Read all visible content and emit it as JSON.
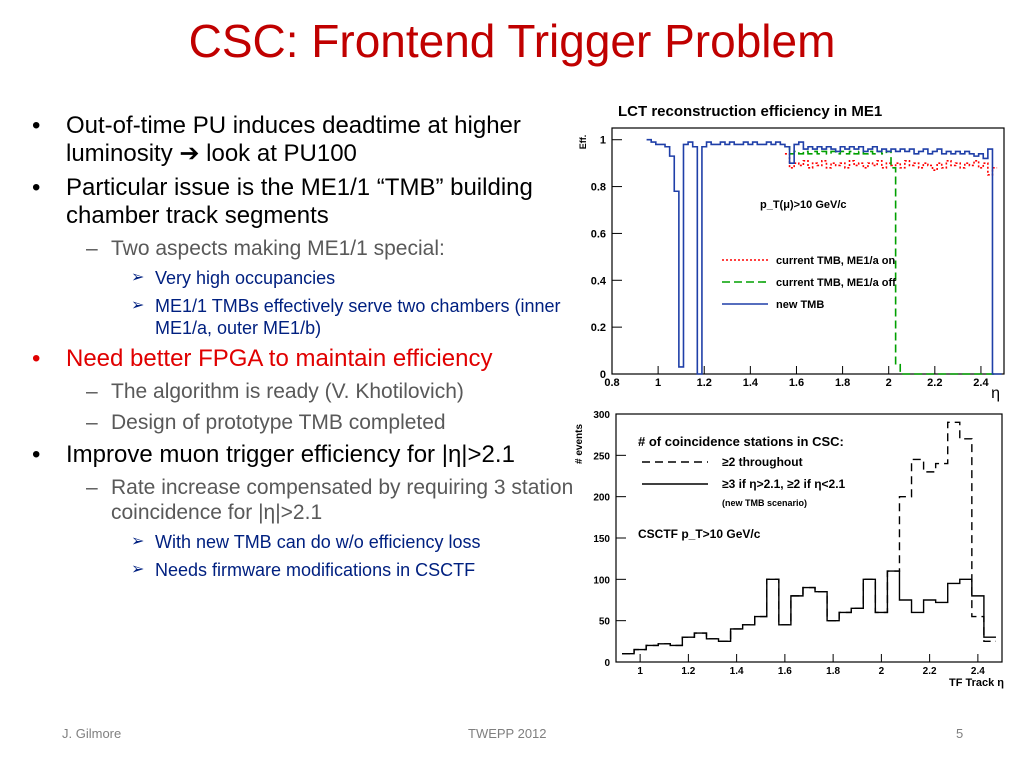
{
  "slide": {
    "title": "CSC: Frontend Trigger Problem",
    "bullets": [
      {
        "level": 1,
        "marker": "•",
        "text": "Out-of-time PU induces deadtime at higher luminosity  ➔ look at PU100"
      },
      {
        "level": 1,
        "marker": "•",
        "text": "Particular issue is the ME1/1 “TMB” building chamber track segments"
      },
      {
        "level": 2,
        "marker": "–",
        "text": "Two aspects making ME1/1 special:"
      },
      {
        "level": 3,
        "marker": "➢",
        "text": "Very high occupancies"
      },
      {
        "level": 3,
        "marker": "➢",
        "text": "ME1/1 TMBs effectively serve two chambers (inner ME1/a, outer ME1/b)"
      },
      {
        "level": 1,
        "marker": "•",
        "text": "Need better FPGA to maintain efficiency",
        "color": "#e00000"
      },
      {
        "level": 2,
        "marker": "–",
        "text": "The algorithm is ready (V. Khotilovich)"
      },
      {
        "level": 2,
        "marker": "–",
        "text": "Design of prototype TMB completed"
      },
      {
        "level": 1,
        "marker": "•",
        "text": "Improve muon trigger efficiency for |η|>2.1"
      },
      {
        "level": 2,
        "marker": "–",
        "text": "Rate increase compensated by requiring 3 station coincidence for |η|>2.1"
      },
      {
        "level": 3,
        "marker": "➢",
        "text": "With new TMB can do w/o efficiency loss"
      },
      {
        "level": 3,
        "marker": "➢",
        "text": "Needs firmware modifications in CSCTF"
      }
    ],
    "footer": {
      "left": "J. Gilmore",
      "center": "TWEPP 2012",
      "right": "5"
    },
    "colors": {
      "title": "#c00000",
      "sub_bullet": "#595959",
      "sub_sub_bullet": "#002080"
    }
  },
  "chart_data": [
    {
      "type": "line",
      "title": "LCT reconstruction efficiency in ME1",
      "xlabel": "η",
      "ylabel": "Eff.",
      "xlim": [
        0.8,
        2.5
      ],
      "ylim": [
        0,
        1.05
      ],
      "xticks": [
        "0.8",
        "1",
        "1.2",
        "1.4",
        "1.6",
        "1.8",
        "2",
        "2.2",
        "2.4"
      ],
      "yticks": [
        "0",
        "0.2",
        "0.4",
        "0.6",
        "0.8",
        "1"
      ],
      "annotation": "p_T(μ)>10 GeV/c",
      "series": [
        {
          "name": "current TMB, ME1/a on",
          "color": "#ff0000",
          "dash": "2,2",
          "x": [
            1.56,
            1.58,
            1.6,
            1.62,
            1.64,
            1.66,
            1.68,
            1.7,
            1.72,
            1.74,
            1.76,
            1.78,
            1.8,
            1.82,
            1.84,
            1.86,
            1.88,
            1.9,
            1.92,
            1.94,
            1.96,
            1.98,
            2.0,
            2.02,
            2.04,
            2.06,
            2.08,
            2.1,
            2.12,
            2.14,
            2.16,
            2.18,
            2.2,
            2.22,
            2.24,
            2.26,
            2.28,
            2.3,
            2.32,
            2.34,
            2.36,
            2.38,
            2.4,
            2.42,
            2.44,
            2.46
          ],
          "y": [
            0.94,
            0.88,
            0.9,
            0.89,
            0.91,
            0.88,
            0.9,
            0.89,
            0.91,
            0.88,
            0.9,
            0.89,
            0.9,
            0.88,
            0.91,
            0.89,
            0.9,
            0.88,
            0.9,
            0.89,
            0.91,
            0.88,
            0.9,
            0.89,
            0.9,
            0.88,
            0.91,
            0.89,
            0.9,
            0.88,
            0.9,
            0.89,
            0.87,
            0.9,
            0.88,
            0.91,
            0.89,
            0.9,
            0.88,
            0.9,
            0.89,
            0.91,
            0.88,
            0.9,
            0.85,
            0.88
          ]
        },
        {
          "name": "current TMB, ME1/a off",
          "color": "#00a000",
          "dash": "8,4",
          "x": [
            1.56,
            1.58,
            1.6,
            1.62,
            1.64,
            1.66,
            1.68,
            1.7,
            1.72,
            1.74,
            1.76,
            1.78,
            1.8,
            1.82,
            1.84,
            1.86,
            1.88,
            1.9,
            1.92,
            1.94,
            1.96,
            1.98,
            2.0,
            2.02,
            2.04,
            2.06,
            2.08,
            2.1,
            2.12,
            2.14,
            2.16,
            2.18,
            2.2,
            2.22,
            2.24,
            2.26,
            2.28,
            2.3,
            2.32,
            2.34,
            2.36,
            2.38,
            2.4,
            2.42,
            2.44,
            2.46
          ],
          "y": [
            0.97,
            0.94,
            0.95,
            0.94,
            0.95,
            0.94,
            0.95,
            0.94,
            0.95,
            0.94,
            0.95,
            0.94,
            0.95,
            0.94,
            0.95,
            0.94,
            0.95,
            0.94,
            0.95,
            0.94,
            0.95,
            0.94,
            0.95,
            0.88,
            0.04,
            0.0,
            0.0,
            0.0,
            0.0,
            0.0,
            0.0,
            0.0,
            0.0,
            0.0,
            0.0,
            0.0,
            0.0,
            0.0,
            0.0,
            0.0,
            0.0,
            0.0,
            0.0,
            0.0,
            0.0,
            0.0
          ]
        },
        {
          "name": "new TMB",
          "color": "#1f3fa8",
          "dash": "",
          "x": [
            0.96,
            0.98,
            1.0,
            1.02,
            1.04,
            1.06,
            1.08,
            1.1,
            1.12,
            1.14,
            1.16,
            1.18,
            1.2,
            1.22,
            1.24,
            1.26,
            1.28,
            1.3,
            1.32,
            1.34,
            1.36,
            1.38,
            1.4,
            1.42,
            1.44,
            1.46,
            1.48,
            1.5,
            1.52,
            1.54,
            1.56,
            1.58,
            1.6,
            1.62,
            1.64,
            1.66,
            1.68,
            1.7,
            1.72,
            1.74,
            1.76,
            1.78,
            1.8,
            1.82,
            1.84,
            1.86,
            1.88,
            1.9,
            1.92,
            1.94,
            1.96,
            1.98,
            2.0,
            2.02,
            2.04,
            2.06,
            2.08,
            2.1,
            2.12,
            2.14,
            2.16,
            2.18,
            2.2,
            2.22,
            2.24,
            2.26,
            2.28,
            2.3,
            2.32,
            2.34,
            2.36,
            2.38,
            2.4,
            2.42,
            2.44,
            2.46,
            2.48
          ],
          "y": [
            1.0,
            0.99,
            0.98,
            0.98,
            0.97,
            0.93,
            0.78,
            0.03,
            0.98,
            0.99,
            0.97,
            0.0,
            0.97,
            0.99,
            0.98,
            0.98,
            0.99,
            0.98,
            0.99,
            0.98,
            0.98,
            0.99,
            0.98,
            0.99,
            0.98,
            0.98,
            0.99,
            0.98,
            0.99,
            0.98,
            0.97,
            0.9,
            0.98,
            0.99,
            0.96,
            0.97,
            0.96,
            0.97,
            0.96,
            0.97,
            0.96,
            0.95,
            0.97,
            0.96,
            0.97,
            0.96,
            0.97,
            0.95,
            0.96,
            0.97,
            0.95,
            0.96,
            0.95,
            0.96,
            0.95,
            0.96,
            0.95,
            0.96,
            0.94,
            0.95,
            0.96,
            0.94,
            0.95,
            0.96,
            0.94,
            0.95,
            0.94,
            0.95,
            0.94,
            0.95,
            0.94,
            0.93,
            0.94,
            0.92,
            0.96,
            0.0,
            0.0
          ]
        }
      ]
    },
    {
      "type": "line",
      "title": "# of coincidence stations in CSC:",
      "xlabel": "TF Track η",
      "ylabel": "# events",
      "xlim": [
        0.9,
        2.5
      ],
      "ylim": [
        0,
        300
      ],
      "xticks": [
        "1",
        "1.2",
        "1.4",
        "1.6",
        "1.8",
        "2",
        "2.2",
        "2.4"
      ],
      "yticks": [
        "0",
        "50",
        "100",
        "150",
        "200",
        "250",
        "300"
      ],
      "annotations": [
        "CSCTF p_T>10 GeV/c",
        "(new TMB scenario)"
      ],
      "series": [
        {
          "name": "≥2 throughout",
          "color": "#000000",
          "dash": "8,5",
          "x": [
            0.95,
            1.0,
            1.05,
            1.1,
            1.15,
            1.2,
            1.25,
            1.3,
            1.35,
            1.4,
            1.45,
            1.5,
            1.55,
            1.6,
            1.65,
            1.7,
            1.75,
            1.8,
            1.85,
            1.9,
            1.95,
            2.0,
            2.05,
            2.1,
            2.15,
            2.2,
            2.25,
            2.3,
            2.35,
            2.4,
            2.45
          ],
          "y": [
            10,
            15,
            20,
            22,
            20,
            30,
            35,
            28,
            25,
            40,
            45,
            55,
            100,
            45,
            80,
            90,
            85,
            50,
            60,
            65,
            100,
            60,
            110,
            200,
            245,
            230,
            240,
            290,
            270,
            55,
            25
          ]
        },
        {
          "name": "≥3 if η>2.1, ≥2 if η<2.1",
          "color": "#000000",
          "dash": "",
          "x": [
            0.95,
            1.0,
            1.05,
            1.1,
            1.15,
            1.2,
            1.25,
            1.3,
            1.35,
            1.4,
            1.45,
            1.5,
            1.55,
            1.6,
            1.65,
            1.7,
            1.75,
            1.8,
            1.85,
            1.9,
            1.95,
            2.0,
            2.05,
            2.1,
            2.15,
            2.2,
            2.25,
            2.3,
            2.35,
            2.4,
            2.45
          ],
          "y": [
            10,
            15,
            20,
            22,
            20,
            30,
            35,
            28,
            25,
            40,
            45,
            55,
            100,
            45,
            80,
            90,
            85,
            50,
            60,
            65,
            100,
            60,
            110,
            75,
            60,
            75,
            72,
            95,
            100,
            80,
            30
          ]
        }
      ]
    }
  ]
}
